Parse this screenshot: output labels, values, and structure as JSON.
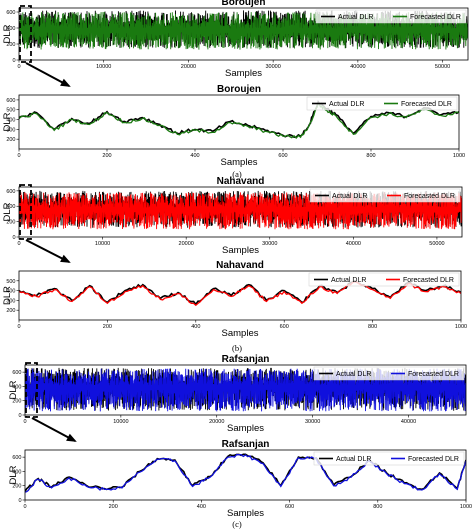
{
  "captions": [
    "(a)",
    "(b)",
    "(c)"
  ],
  "chart_data": [
    {
      "type": "line",
      "title": "Boroujen",
      "xlabel": "Samples",
      "ylabel": "DLR",
      "xlim": [
        0,
        53000
      ],
      "ylim": [
        0,
        650
      ],
      "xticks": [
        0,
        10000,
        20000,
        30000,
        40000,
        50000
      ],
      "xtick_labels": [
        "0",
        "10000",
        "20000",
        "30000",
        "40000",
        "50000"
      ],
      "yticks": [
        0,
        200,
        400,
        600
      ],
      "ytick_labels": [
        "0",
        "200",
        "400",
        "600"
      ],
      "legend": "top-right",
      "series": [
        {
          "name": "Actual DLR",
          "color": "#000000",
          "pattern": "dense",
          "range": [
            150,
            620
          ],
          "mean": 380
        },
        {
          "name": "Forecasted DLR",
          "color": "#1a7a10",
          "pattern": "dense",
          "range": [
            130,
            600
          ],
          "mean": 370
        }
      ],
      "zoom_region": [
        0,
        1000
      ]
    },
    {
      "type": "line",
      "title": "Boroujen",
      "xlabel": "Samples",
      "ylabel": "DLR",
      "xlim": [
        0,
        1000
      ],
      "ylim": [
        100,
        650
      ],
      "xticks": [
        0,
        200,
        400,
        600,
        800,
        1000
      ],
      "xtick_labels": [
        "0",
        "200",
        "400",
        "600",
        "800",
        "1000"
      ],
      "yticks": [
        200,
        300,
        400,
        500,
        600
      ],
      "ytick_labels": [
        "200",
        "300",
        "400",
        "500",
        "600"
      ],
      "legend": "top-right",
      "x": [
        0,
        40,
        80,
        120,
        160,
        200,
        240,
        280,
        320,
        360,
        400,
        440,
        480,
        520,
        560,
        600,
        640,
        660,
        680,
        700,
        720,
        760,
        800,
        840,
        880,
        920,
        960,
        1000
      ],
      "series": [
        {
          "name": "Actual DLR",
          "color": "#000000",
          "values": [
            420,
            470,
            300,
            410,
            360,
            480,
            380,
            420,
            350,
            260,
            300,
            280,
            380,
            340,
            290,
            240,
            230,
            350,
            580,
            510,
            450,
            260,
            430,
            470,
            430,
            520,
            450,
            480
          ]
        },
        {
          "name": "Forecasted DLR",
          "color": "#1a7a10",
          "values": [
            410,
            460,
            290,
            400,
            350,
            470,
            370,
            410,
            340,
            250,
            290,
            270,
            370,
            330,
            280,
            230,
            220,
            340,
            560,
            490,
            440,
            250,
            420,
            460,
            420,
            500,
            440,
            470
          ]
        }
      ]
    },
    {
      "type": "line",
      "title": "Nahavand",
      "xlabel": "Samples",
      "ylabel": "DLR",
      "xlim": [
        0,
        53000
      ],
      "ylim": [
        0,
        650
      ],
      "xticks": [
        0,
        10000,
        20000,
        30000,
        40000,
        50000
      ],
      "xtick_labels": [
        "0",
        "10000",
        "20000",
        "30000",
        "40000",
        "50000"
      ],
      "yticks": [
        0,
        200,
        400,
        600
      ],
      "ytick_labels": [
        "0",
        "200",
        "400",
        "600"
      ],
      "legend": "top-right",
      "series": [
        {
          "name": "Actual DLR",
          "color": "#000000",
          "pattern": "dense",
          "range": [
            120,
            600
          ],
          "mean": 380
        },
        {
          "name": "Forecasted DLR",
          "color": "#ff0000",
          "pattern": "dense",
          "range": [
            100,
            580
          ],
          "mean": 360
        }
      ],
      "zoom_region": [
        0,
        1000
      ]
    },
    {
      "type": "line",
      "title": "Nahavand",
      "xlabel": "Samples",
      "ylabel": "DLR",
      "xlim": [
        0,
        1000
      ],
      "ylim": [
        100,
        600
      ],
      "xticks": [
        0,
        200,
        400,
        600,
        800,
        1000
      ],
      "xtick_labels": [
        "0",
        "200",
        "400",
        "600",
        "800",
        "1000"
      ],
      "yticks": [
        200,
        300,
        400,
        500
      ],
      "ytick_labels": [
        "200",
        "300",
        "400",
        "500"
      ],
      "legend": "top-right",
      "x": [
        0,
        40,
        80,
        120,
        160,
        200,
        240,
        280,
        320,
        360,
        400,
        440,
        480,
        520,
        560,
        600,
        640,
        680,
        720,
        760,
        800,
        840,
        880,
        920,
        960,
        1000
      ],
      "series": [
        {
          "name": "Actual DLR",
          "color": "#000000",
          "values": [
            400,
            350,
            420,
            300,
            450,
            280,
            400,
            460,
            320,
            380,
            260,
            420,
            350,
            460,
            300,
            400,
            280,
            450,
            380,
            500,
            420,
            330,
            480,
            400,
            450,
            380
          ]
        },
        {
          "name": "Forecasted DLR",
          "color": "#ff0000",
          "values": [
            390,
            340,
            410,
            290,
            440,
            270,
            390,
            450,
            310,
            370,
            250,
            410,
            340,
            450,
            290,
            390,
            270,
            440,
            370,
            490,
            410,
            320,
            470,
            390,
            440,
            370
          ]
        }
      ]
    },
    {
      "type": "line",
      "title": "Rafsanjan",
      "xlabel": "Samples",
      "ylabel": "DLR",
      "xlim": [
        0,
        46000
      ],
      "ylim": [
        0,
        700
      ],
      "xticks": [
        0,
        10000,
        20000,
        30000,
        40000
      ],
      "xtick_labels": [
        "0",
        "10000",
        "20000",
        "30000",
        "40000"
      ],
      "yticks": [
        0,
        200,
        400,
        600
      ],
      "ytick_labels": [
        "0",
        "200",
        "400",
        "600"
      ],
      "legend": "top-right",
      "series": [
        {
          "name": "Actual DLR",
          "color": "#000000",
          "pattern": "dense",
          "range": [
            60,
            660
          ],
          "mean": 400
        },
        {
          "name": "Forecasted DLR",
          "color": "#1010dd",
          "pattern": "dense",
          "range": [
            50,
            650
          ],
          "mean": 390
        }
      ],
      "zoom_region": [
        0,
        1000
      ]
    },
    {
      "type": "line",
      "title": "Rafsanjan",
      "xlabel": "Samples",
      "ylabel": "DLR",
      "xlim": [
        0,
        1000
      ],
      "ylim": [
        0,
        700
      ],
      "xticks": [
        0,
        200,
        400,
        600,
        800,
        1000
      ],
      "xtick_labels": [
        "0",
        "200",
        "400",
        "600",
        "800",
        "1000"
      ],
      "yticks": [
        0,
        200,
        400,
        600
      ],
      "ytick_labels": [
        "0",
        "200",
        "400",
        "600"
      ],
      "legend": "top-right",
      "x": [
        0,
        30,
        60,
        100,
        140,
        180,
        220,
        260,
        300,
        340,
        380,
        420,
        460,
        500,
        540,
        580,
        620,
        660,
        700,
        740,
        780,
        820,
        860,
        900,
        940,
        980,
        1000
      ],
      "series": [
        {
          "name": "Actual DLR",
          "color": "#000000",
          "values": [
            120,
            300,
            180,
            320,
            200,
            160,
            180,
            400,
            580,
            560,
            200,
            330,
            610,
            640,
            520,
            200,
            600,
            590,
            210,
            330,
            560,
            380,
            240,
            150,
            380,
            160,
            560
          ]
        },
        {
          "name": "Forecasted DLR",
          "color": "#1010dd",
          "values": [
            110,
            290,
            170,
            310,
            190,
            150,
            170,
            390,
            570,
            550,
            190,
            320,
            600,
            630,
            510,
            190,
            590,
            580,
            200,
            320,
            550,
            370,
            230,
            140,
            370,
            150,
            550
          ]
        }
      ]
    }
  ]
}
